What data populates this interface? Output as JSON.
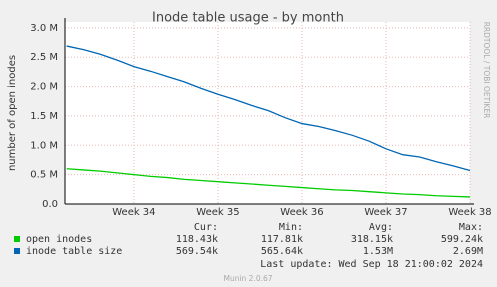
{
  "chart_data": {
    "type": "line",
    "title": "Inode table usage - by month",
    "ylabel": "number of open inodes",
    "side_text": "RRDTOOL / TOBI OETIKER",
    "xlim": [
      33.18,
      38.0
    ],
    "xticks": [
      {
        "value": 34,
        "label": "Week 34"
      },
      {
        "value": 35,
        "label": "Week 35"
      },
      {
        "value": 36,
        "label": "Week 36"
      },
      {
        "value": 37,
        "label": "Week 37"
      },
      {
        "value": 38,
        "label": "Week 38"
      }
    ],
    "ylim": [
      0,
      3100000
    ],
    "yticks": [
      {
        "value": 0,
        "label": "0.0"
      },
      {
        "value": 500000,
        "label": "0.5 M"
      },
      {
        "value": 1000000,
        "label": "1.0 M"
      },
      {
        "value": 1500000,
        "label": "1.5 M"
      },
      {
        "value": 2000000,
        "label": "2.0 M"
      },
      {
        "value": 2500000,
        "label": "2.5 M"
      },
      {
        "value": 3000000,
        "label": "3.0 M"
      }
    ],
    "grid": true,
    "x": [
      33.2,
      33.4,
      33.6,
      33.8,
      34.0,
      34.2,
      34.4,
      34.6,
      34.8,
      35.0,
      35.2,
      35.4,
      35.6,
      35.8,
      36.0,
      36.2,
      36.4,
      36.6,
      36.8,
      37.0,
      37.2,
      37.4,
      37.6,
      37.8,
      38.0
    ],
    "stat_labels": [
      "Cur:",
      "Min:",
      "Avg:",
      "Max:"
    ],
    "series": [
      {
        "name": "open inodes",
        "color": "#00cc00",
        "values": [
          600000,
          580000,
          560000,
          530000,
          500000,
          470000,
          450000,
          420000,
          400000,
          380000,
          360000,
          340000,
          320000,
          300000,
          280000,
          260000,
          240000,
          230000,
          210000,
          190000,
          170000,
          160000,
          140000,
          130000,
          120000
        ],
        "stats": [
          "118.43k",
          "117.81k",
          "318.15k",
          "599.24k"
        ]
      },
      {
        "name": "inode table size",
        "color": "#0066b3",
        "values": [
          2690000,
          2630000,
          2550000,
          2450000,
          2340000,
          2260000,
          2170000,
          2080000,
          1970000,
          1870000,
          1780000,
          1680000,
          1590000,
          1470000,
          1370000,
          1320000,
          1250000,
          1170000,
          1070000,
          940000,
          840000,
          800000,
          720000,
          650000,
          570000
        ],
        "stats": [
          "569.54k",
          "565.64k",
          "1.53M",
          "2.69M"
        ]
      }
    ],
    "last_update": "Last update: Wed Sep 18 21:00:02 2024",
    "footer": "Munin 2.0.67"
  }
}
